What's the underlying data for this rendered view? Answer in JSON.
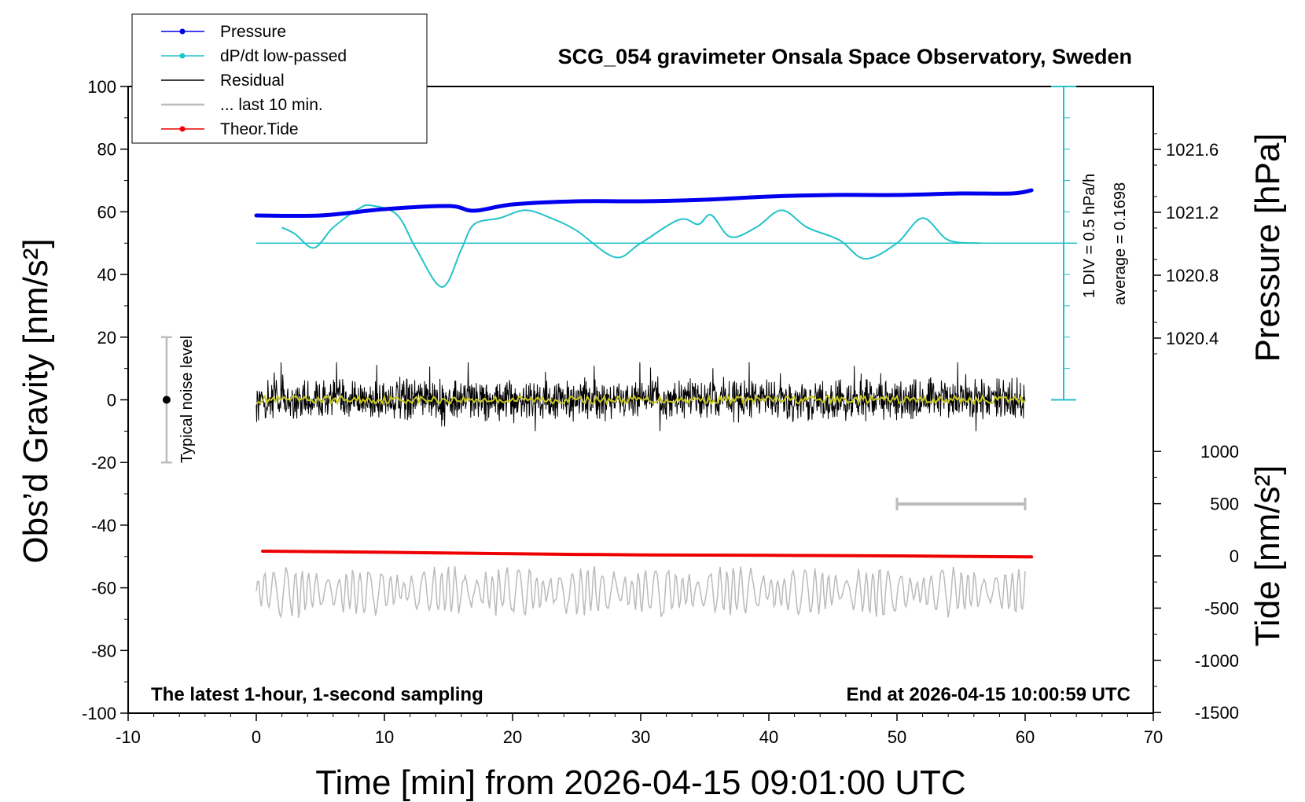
{
  "chart_data": {
    "type": "line",
    "title": "SCG_054 gravimeter Onsala Space Observatory, Sweden",
    "xlabel": "Time [min] from 2026-04-15 09:01:00 UTC",
    "ylabel_left": "Obs’d Gravity [nm/s²]",
    "ylabel_right_pressure": "Pressure [hPa]",
    "ylabel_right_tide": "Tide [nm/s²]",
    "xlim": [
      -10,
      70
    ],
    "ylim_left": [
      -100,
      100
    ],
    "grid": false,
    "legend_position": "top-left",
    "x_ticks": [
      "-10",
      "0",
      "10",
      "20",
      "30",
      "40",
      "50",
      "60",
      "70"
    ],
    "y_ticks_left": [
      "100",
      "80",
      "60",
      "40",
      "20",
      "0",
      "-20",
      "-40",
      "-60",
      "-80",
      "-100"
    ],
    "pressure_ticks": [
      "1021.6",
      "1021.2",
      "1020.8",
      "1020.4"
    ],
    "tide_ticks": [
      "1000",
      "500",
      "0",
      "-500",
      "-1000",
      "-1500"
    ],
    "note_left": "The latest 1-hour, 1-second sampling",
    "note_right": "End at 2026-04-15 10:00:59 UTC",
    "noise_label": "Typical noise level",
    "div_label": "1 DIV = 0.5 hPa/h",
    "avg_label": "average = 0.1698",
    "colors": {
      "pressure": "#0000ee",
      "dpdt": "#22c3c8",
      "residual": "#000000",
      "residual_smooth": "#c8c81e",
      "last10": "#bbbbbb",
      "tide": "#ee0000"
    },
    "legend": [
      {
        "label": "Pressure",
        "color": "#0000ee",
        "marker": true
      },
      {
        "label": "dP/dt low-passed",
        "color": "#22c3c8",
        "marker": true
      },
      {
        "label": "Residual",
        "color": "#000000",
        "marker": false
      },
      {
        "label": "... last 10 min.",
        "color": "#bbbbbb",
        "marker": false
      },
      {
        "label": "Theor.Tide",
        "color": "#ee0000",
        "marker": true
      }
    ],
    "series": [
      {
        "name": "Pressure",
        "axis": "pressure_hPa",
        "x": [
          0,
          5,
          10,
          15,
          17,
          20,
          25,
          30,
          35,
          40,
          45,
          50,
          55,
          59,
          60.5
        ],
        "y": [
          1021.18,
          1021.18,
          1021.22,
          1021.24,
          1021.21,
          1021.25,
          1021.27,
          1021.27,
          1021.28,
          1021.3,
          1021.31,
          1021.31,
          1021.32,
          1021.32,
          1021.34
        ]
      },
      {
        "name": "dP/dt low-passed",
        "axis": "left_nm_s2",
        "x": [
          2,
          3,
          4.5,
          6,
          8,
          9,
          11,
          12.5,
          14.5,
          16,
          17,
          19,
          21,
          23,
          25,
          28,
          30,
          33,
          34.5,
          35.5,
          37,
          39,
          41,
          43,
          45.5,
          47.5,
          50,
          52,
          54,
          56.5
        ],
        "y": [
          55,
          53,
          48.5,
          55,
          61,
          62,
          59,
          48,
          36,
          48,
          56,
          58,
          60.5,
          58,
          54,
          45.5,
          50,
          57.5,
          56,
          59,
          52,
          55,
          60.5,
          55,
          51,
          45,
          50,
          58,
          51,
          50
        ]
      },
      {
        "name": "Residual",
        "axis": "left_nm_s2",
        "x_range": [
          0,
          60
        ],
        "approx_range": [
          -9,
          12
        ]
      },
      {
        "name": "... last 10 min.",
        "axis": "left_nm_s2",
        "x_range": [
          0,
          60
        ],
        "baseline": -61,
        "approx_range": [
          -70,
          -52
        ]
      },
      {
        "name": "Theor.Tide",
        "axis": "tide_nm_s2",
        "x": [
          0.5,
          10,
          20,
          30,
          40,
          50,
          60.5
        ],
        "y": [
          45,
          35,
          20,
          10,
          5,
          0,
          -10
        ]
      }
    ],
    "dpdt_zero_line": 50,
    "div_scale_range": [
      0,
      100
    ],
    "noise_bar": {
      "x": -7,
      "y": 0,
      "range": [
        -20,
        20
      ]
    },
    "window_bar": {
      "x_range": [
        50,
        60
      ]
    }
  }
}
